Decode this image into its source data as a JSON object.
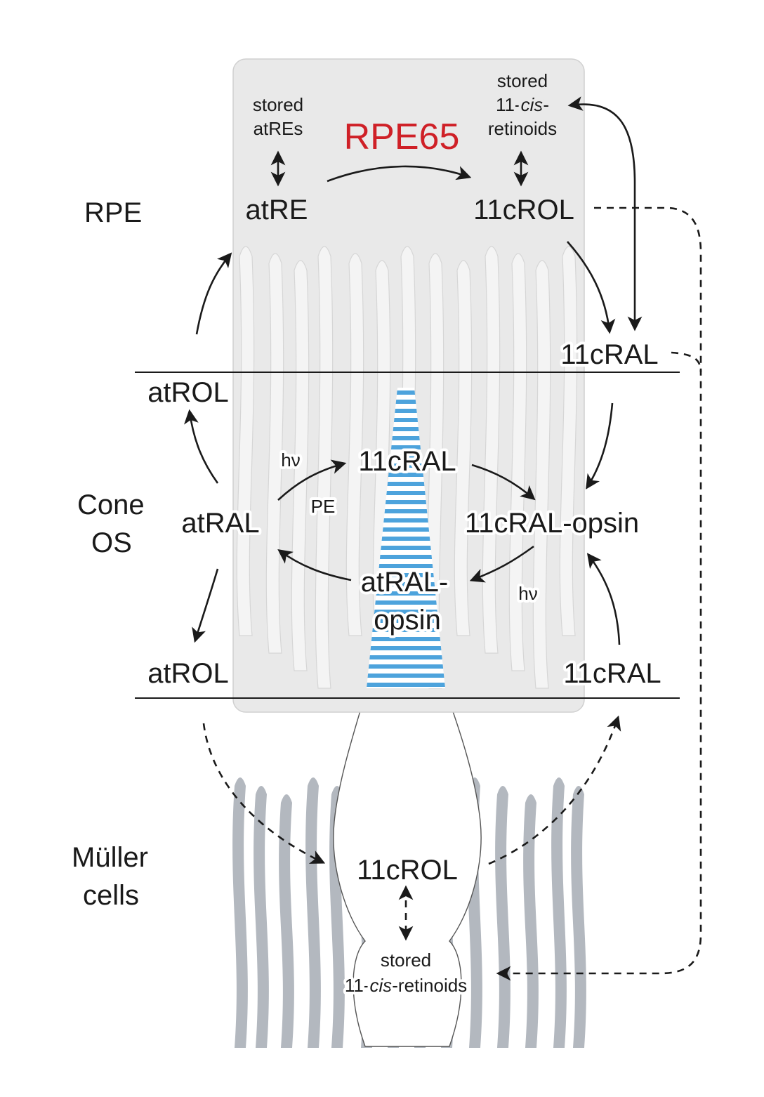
{
  "regions": {
    "rpe": "RPE",
    "cone_os_line1": "Cone",
    "cone_os_line2": "OS",
    "muller_line1": "Müller",
    "muller_line2": "cells"
  },
  "enzyme": "RPE65",
  "rpe_labels": {
    "stored_atre_line1": "stored",
    "stored_atre_line2": "atREs",
    "stored_cis_line1": "stored",
    "stored_cis_line2_prefix": "11-",
    "stored_cis_line2_italic": "cis",
    "stored_cis_line2_suffix": "-",
    "stored_cis_line3": "retinoids",
    "atre": "atRE",
    "rol_11c": "11cROL",
    "ral_11c": "11cRAL"
  },
  "cone_labels": {
    "atrol_top": "atROL",
    "ral_11c_mid": "11cRAL",
    "hv_left": "hν",
    "pe": "PE",
    "atral": "atRAL",
    "ral_opsin_11c": "11cRAL-opsin",
    "atral_opsin_line1": "atRAL-",
    "atral_opsin_line2": "opsin",
    "hv_right": "hν",
    "atrol_bottom": "atROL",
    "ral_11c_bottom": "11cRAL"
  },
  "muller_labels": {
    "rol_11c": "11cROL",
    "stored_line1": "stored",
    "stored_line2_prefix": "11-",
    "stored_line2_italic": "cis",
    "stored_line2_suffix": "-retinoids"
  },
  "colors": {
    "enzyme_red": "#cf2027",
    "rpe_fill": "#e9e9e9",
    "cone_stripe_blue": "#4da3dc",
    "muller_gray": "#b3b8bf",
    "villi_gray": "#f4f4f4"
  }
}
